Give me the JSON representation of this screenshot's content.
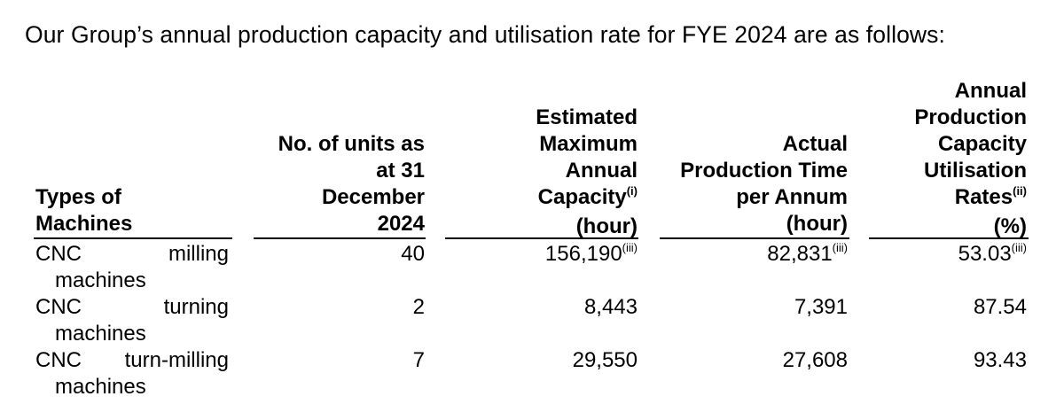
{
  "intro": "Our Group’s annual production capacity and utilisation rate for FYE 2024 are as follows:",
  "headers": {
    "type": [
      "Types of",
      "Machines"
    ],
    "units": [
      "No. of units as",
      "at 31",
      "December",
      "2024"
    ],
    "capacity": [
      "Estimated",
      "Maximum",
      "Annual",
      "Capacity",
      "(hour)"
    ],
    "capacity_sup": "(i)",
    "actual": [
      "Actual",
      "Production Time",
      "per Annum",
      "(hour)"
    ],
    "rates": [
      "Annual",
      "Production",
      "Capacity",
      "Utilisation",
      "Rates",
      "(%)"
    ],
    "rates_sup": "(ii)"
  },
  "rows": [
    {
      "name_a": "CNC",
      "name_b": "milling",
      "name_c": "machines",
      "units": "40",
      "capacity": "156,190",
      "capacity_sup": "(iii)",
      "actual": "82,831",
      "actual_sup": "(iii)",
      "rate": "53.03",
      "rate_sup": "(iii)"
    },
    {
      "name_a": "CNC",
      "name_b": "turning",
      "name_c": "machines",
      "units": "2",
      "capacity": "8,443",
      "capacity_sup": "",
      "actual": "7,391",
      "actual_sup": "",
      "rate": "87.54",
      "rate_sup": ""
    },
    {
      "name_a": "CNC",
      "name_b": "turn-milling",
      "name_c": "machines",
      "units": "7",
      "capacity": "29,550",
      "capacity_sup": "",
      "actual": "27,608",
      "actual_sup": "",
      "rate": "93.43",
      "rate_sup": ""
    }
  ]
}
